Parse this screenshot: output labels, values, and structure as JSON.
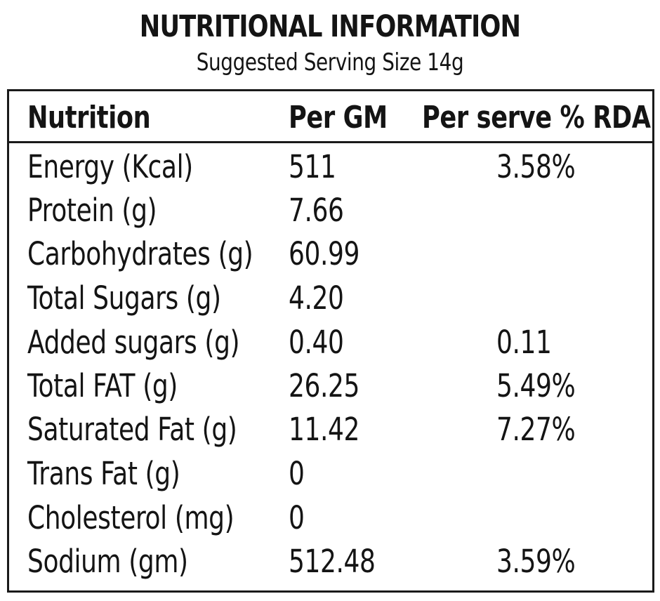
{
  "header": {
    "title": "NUTRITIONAL INFORMATION",
    "subtitle": "Suggested Serving Size 14g"
  },
  "table": {
    "columns": [
      "Nutrition",
      "Per GM",
      "Per serve % RDA"
    ],
    "rows": [
      {
        "nutrient": "Energy (Kcal)",
        "per_gm": "511",
        "rda": "3.58%"
      },
      {
        "nutrient": "Protein (g)",
        "per_gm": "7.66",
        "rda": ""
      },
      {
        "nutrient": "Carbohydrates (g)",
        "per_gm": "60.99",
        "rda": ""
      },
      {
        "nutrient": "Total Sugars (g)",
        "per_gm": "4.20",
        "rda": ""
      },
      {
        "nutrient": "Added sugars (g)",
        "per_gm": "0.40",
        "rda": "0.11"
      },
      {
        "nutrient": "Total FAT (g)",
        "per_gm": "26.25",
        "rda": "5.49%"
      },
      {
        "nutrient": "Saturated Fat (g)",
        "per_gm": "11.42",
        "rda": "7.27%"
      },
      {
        "nutrient": "Trans Fat (g)",
        "per_gm": "0",
        "rda": ""
      },
      {
        "nutrient": "Cholesterol (mg)",
        "per_gm": "0",
        "rda": ""
      },
      {
        "nutrient": "Sodium (gm)",
        "per_gm": "512.48",
        "rda": "3.59%"
      }
    ]
  }
}
